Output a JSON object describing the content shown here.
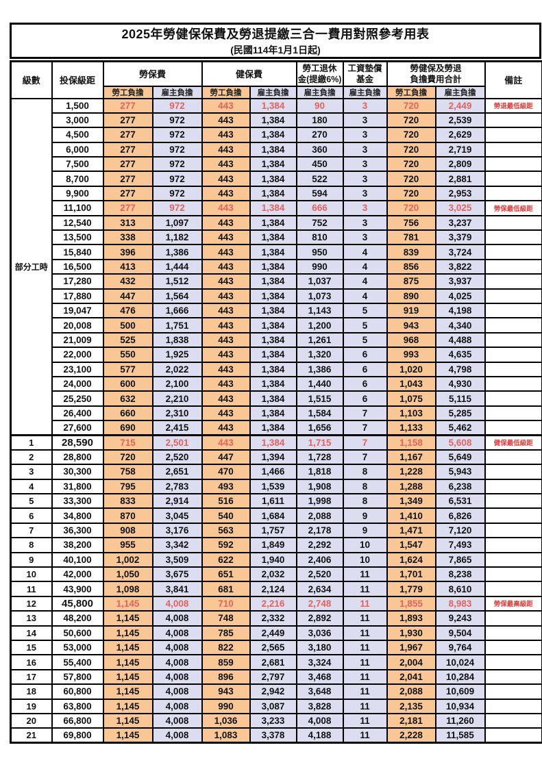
{
  "title": "2025年勞健保保費及勞退提繳三合一費用對照參考用表",
  "subtitle": "(民國114年1月1日起)",
  "header": {
    "level": "級數",
    "bracket": "投保級距",
    "labor_fee": "勞保費",
    "health_fee": "健保費",
    "pension_line1": "勞工退休",
    "pension_line2": "金(提繳6%)",
    "wage_fund_line1": "工資墊償",
    "wage_fund_line2": "基金",
    "total_line1": "勞健保及勞退",
    "total_line2": "負擔費用合計",
    "employee": "勞工負擔",
    "employer": "雇主負擔",
    "note": "備註"
  },
  "part_time_label": "部分工時",
  "colors": {
    "employee_bg": "#F8C795",
    "employer_bg": "#DDDDF1",
    "value_red": "#E4625C",
    "note_red": "#E23B3B"
  },
  "rows": [
    {
      "part_time": true,
      "bracket": "1,500",
      "values": [
        "277",
        "972",
        "443",
        "1,384",
        "90",
        "3",
        "720",
        "2,449"
      ],
      "note": "勞退最低級距",
      "highlight": true
    },
    {
      "part_time": true,
      "bracket": "3,000",
      "values": [
        "277",
        "972",
        "443",
        "1,384",
        "180",
        "3",
        "720",
        "2,539"
      ]
    },
    {
      "part_time": true,
      "bracket": "4,500",
      "values": [
        "277",
        "972",
        "443",
        "1,384",
        "270",
        "3",
        "720",
        "2,629"
      ]
    },
    {
      "part_time": true,
      "bracket": "6,000",
      "values": [
        "277",
        "972",
        "443",
        "1,384",
        "360",
        "3",
        "720",
        "2,719"
      ]
    },
    {
      "part_time": true,
      "bracket": "7,500",
      "values": [
        "277",
        "972",
        "443",
        "1,384",
        "450",
        "3",
        "720",
        "2,809"
      ]
    },
    {
      "part_time": true,
      "bracket": "8,700",
      "values": [
        "277",
        "972",
        "443",
        "1,384",
        "522",
        "3",
        "720",
        "2,881"
      ]
    },
    {
      "part_time": true,
      "bracket": "9,900",
      "values": [
        "277",
        "972",
        "443",
        "1,384",
        "594",
        "3",
        "720",
        "2,953"
      ]
    },
    {
      "part_time": true,
      "bracket": "11,100",
      "values": [
        "277",
        "972",
        "443",
        "1,384",
        "666",
        "3",
        "720",
        "3,025"
      ],
      "note": "勞保最低級距",
      "highlight": true
    },
    {
      "part_time": true,
      "bracket": "12,540",
      "values": [
        "313",
        "1,097",
        "443",
        "1,384",
        "752",
        "3",
        "756",
        "3,237"
      ]
    },
    {
      "part_time": true,
      "bracket": "13,500",
      "values": [
        "338",
        "1,182",
        "443",
        "1,384",
        "810",
        "3",
        "781",
        "3,379"
      ]
    },
    {
      "part_time": true,
      "bracket": "15,840",
      "values": [
        "396",
        "1,386",
        "443",
        "1,384",
        "950",
        "4",
        "839",
        "3,724"
      ]
    },
    {
      "part_time": true,
      "bracket": "16,500",
      "values": [
        "413",
        "1,444",
        "443",
        "1,384",
        "990",
        "4",
        "856",
        "3,822"
      ]
    },
    {
      "part_time": true,
      "bracket": "17,280",
      "values": [
        "432",
        "1,512",
        "443",
        "1,384",
        "1,037",
        "4",
        "875",
        "3,937"
      ]
    },
    {
      "part_time": true,
      "bracket": "17,880",
      "values": [
        "447",
        "1,564",
        "443",
        "1,384",
        "1,073",
        "4",
        "890",
        "4,025"
      ]
    },
    {
      "part_time": true,
      "bracket": "19,047",
      "values": [
        "476",
        "1,666",
        "443",
        "1,384",
        "1,143",
        "5",
        "919",
        "4,198"
      ]
    },
    {
      "part_time": true,
      "bracket": "20,008",
      "values": [
        "500",
        "1,751",
        "443",
        "1,384",
        "1,200",
        "5",
        "943",
        "4,340"
      ]
    },
    {
      "part_time": true,
      "bracket": "21,009",
      "values": [
        "525",
        "1,838",
        "443",
        "1,384",
        "1,261",
        "5",
        "968",
        "4,488"
      ]
    },
    {
      "part_time": true,
      "bracket": "22,000",
      "values": [
        "550",
        "1,925",
        "443",
        "1,384",
        "1,320",
        "6",
        "993",
        "4,635"
      ]
    },
    {
      "part_time": true,
      "bracket": "23,100",
      "values": [
        "577",
        "2,022",
        "443",
        "1,384",
        "1,386",
        "6",
        "1,020",
        "4,798"
      ]
    },
    {
      "part_time": true,
      "bracket": "24,000",
      "values": [
        "600",
        "2,100",
        "443",
        "1,384",
        "1,440",
        "6",
        "1,043",
        "4,930"
      ]
    },
    {
      "part_time": true,
      "bracket": "25,250",
      "values": [
        "632",
        "2,210",
        "443",
        "1,384",
        "1,515",
        "6",
        "1,075",
        "5,115"
      ]
    },
    {
      "part_time": true,
      "bracket": "26,400",
      "values": [
        "660",
        "2,310",
        "443",
        "1,384",
        "1,584",
        "7",
        "1,103",
        "5,285"
      ]
    },
    {
      "part_time": true,
      "bracket": "27,600",
      "values": [
        "690",
        "2,415",
        "443",
        "1,384",
        "1,656",
        "7",
        "1,133",
        "5,462"
      ]
    },
    {
      "level": "1",
      "bracket": "28,590",
      "values": [
        "715",
        "2,501",
        "443",
        "1,384",
        "1,715",
        "7",
        "1,158",
        "5,608"
      ],
      "note": "健保最低級距",
      "highlight": true,
      "bold": true
    },
    {
      "level": "2",
      "bracket": "28,800",
      "values": [
        "720",
        "2,520",
        "447",
        "1,394",
        "1,728",
        "7",
        "1,167",
        "5,649"
      ]
    },
    {
      "level": "3",
      "bracket": "30,300",
      "values": [
        "758",
        "2,651",
        "470",
        "1,466",
        "1,818",
        "8",
        "1,228",
        "5,943"
      ]
    },
    {
      "level": "4",
      "bracket": "31,800",
      "values": [
        "795",
        "2,783",
        "493",
        "1,539",
        "1,908",
        "8",
        "1,288",
        "6,238"
      ]
    },
    {
      "level": "5",
      "bracket": "33,300",
      "values": [
        "833",
        "2,914",
        "516",
        "1,611",
        "1,998",
        "8",
        "1,349",
        "6,531"
      ]
    },
    {
      "level": "6",
      "bracket": "34,800",
      "values": [
        "870",
        "3,045",
        "540",
        "1,684",
        "2,088",
        "9",
        "1,410",
        "6,826"
      ]
    },
    {
      "level": "7",
      "bracket": "36,300",
      "values": [
        "908",
        "3,176",
        "563",
        "1,757",
        "2,178",
        "9",
        "1,471",
        "7,120"
      ]
    },
    {
      "level": "8",
      "bracket": "38,200",
      "values": [
        "955",
        "3,342",
        "592",
        "1,849",
        "2,292",
        "10",
        "1,547",
        "7,493"
      ]
    },
    {
      "level": "9",
      "bracket": "40,100",
      "values": [
        "1,002",
        "3,509",
        "622",
        "1,940",
        "2,406",
        "10",
        "1,624",
        "7,865"
      ]
    },
    {
      "level": "10",
      "bracket": "42,000",
      "values": [
        "1,050",
        "3,675",
        "651",
        "2,032",
        "2,520",
        "11",
        "1,701",
        "8,238"
      ]
    },
    {
      "level": "11",
      "bracket": "43,900",
      "values": [
        "1,098",
        "3,841",
        "681",
        "2,124",
        "2,634",
        "11",
        "1,779",
        "8,610"
      ]
    },
    {
      "level": "12",
      "bracket": "45,800",
      "values": [
        "1,145",
        "4,008",
        "710",
        "2,216",
        "2,748",
        "11",
        "1,855",
        "8,983"
      ],
      "note": "勞保最高級距",
      "highlight": true,
      "bold": true
    },
    {
      "level": "13",
      "bracket": "48,200",
      "values": [
        "1,145",
        "4,008",
        "748",
        "2,332",
        "2,892",
        "11",
        "1,893",
        "9,243"
      ]
    },
    {
      "level": "14",
      "bracket": "50,600",
      "values": [
        "1,145",
        "4,008",
        "785",
        "2,449",
        "3,036",
        "11",
        "1,930",
        "9,504"
      ]
    },
    {
      "level": "15",
      "bracket": "53,000",
      "values": [
        "1,145",
        "4,008",
        "822",
        "2,565",
        "3,180",
        "11",
        "1,967",
        "9,764"
      ]
    },
    {
      "level": "16",
      "bracket": "55,400",
      "values": [
        "1,145",
        "4,008",
        "859",
        "2,681",
        "3,324",
        "11",
        "2,004",
        "10,024"
      ]
    },
    {
      "level": "17",
      "bracket": "57,800",
      "values": [
        "1,145",
        "4,008",
        "896",
        "2,797",
        "3,468",
        "11",
        "2,041",
        "10,284"
      ]
    },
    {
      "level": "18",
      "bracket": "60,800",
      "values": [
        "1,145",
        "4,008",
        "943",
        "2,942",
        "3,648",
        "11",
        "2,088",
        "10,609"
      ]
    },
    {
      "level": "19",
      "bracket": "63,800",
      "values": [
        "1,145",
        "4,008",
        "990",
        "3,087",
        "3,828",
        "11",
        "2,135",
        "10,934"
      ]
    },
    {
      "level": "20",
      "bracket": "66,800",
      "values": [
        "1,145",
        "4,008",
        "1,036",
        "3,233",
        "4,008",
        "11",
        "2,181",
        "11,260"
      ]
    },
    {
      "level": "21",
      "bracket": "69,800",
      "values": [
        "1,145",
        "4,008",
        "1,083",
        "3,378",
        "4,188",
        "11",
        "2,228",
        "11,585"
      ]
    }
  ]
}
